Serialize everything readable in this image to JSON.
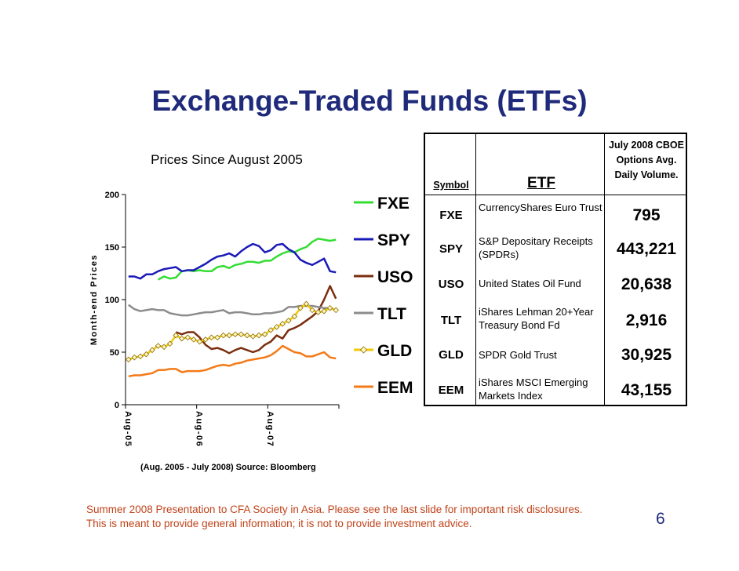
{
  "slide": {
    "title": "Exchange-Traded Funds (ETFs)",
    "footer_line1": "Summer 2008 Presentation to CFA Society in Asia.  Please see the last slide for important risk disclosures.",
    "footer_line2": "This is meant to provide general information; it is not to provide investment advice.",
    "page_number": "6"
  },
  "chart_data": {
    "type": "line",
    "title": "Prices Since August 2005",
    "xlabel": "",
    "ylabel": "Month-end Prices",
    "source": "(Aug. 2005 - July 2008) Source: Bloomberg",
    "ylim": [
      0,
      200
    ],
    "yticks": [
      0,
      50,
      100,
      150,
      200
    ],
    "n_points": 36,
    "xticks": [
      {
        "index": 0,
        "label": "Aug-05"
      },
      {
        "index": 12,
        "label": "Aug-06"
      },
      {
        "index": 24,
        "label": "Aug-07"
      }
    ],
    "series": [
      {
        "name": "FXE",
        "color": "#33dd33",
        "width": 2.5,
        "values": [
          null,
          null,
          null,
          null,
          null,
          119,
          122,
          120,
          121,
          127,
          128,
          127,
          128,
          127,
          127,
          131,
          132,
          130,
          133,
          134,
          136,
          136,
          135,
          137,
          137,
          141,
          144,
          146,
          145,
          148,
          150,
          155,
          158,
          157,
          156,
          157
        ]
      },
      {
        "name": "SPY",
        "color": "#1a1ab8",
        "width": 2.5,
        "values": [
          122,
          122,
          120,
          124,
          124,
          127,
          129,
          130,
          131,
          127,
          128,
          128,
          131,
          134,
          138,
          141,
          142,
          144,
          141,
          146,
          150,
          153,
          151,
          145,
          147,
          152,
          153,
          148,
          145,
          138,
          135,
          133,
          136,
          139,
          127,
          126
        ]
      },
      {
        "name": "USO",
        "color": "#7a2e0e",
        "width": 2.5,
        "values": [
          null,
          null,
          null,
          null,
          null,
          null,
          null,
          null,
          69,
          67,
          69,
          69,
          64,
          57,
          53,
          54,
          52,
          49,
          52,
          54,
          52,
          50,
          52,
          57,
          60,
          66,
          63,
          71,
          73,
          76,
          80,
          84,
          89,
          100,
          113,
          101
        ]
      },
      {
        "name": "TLT",
        "color": "#8c8c8c",
        "width": 2.5,
        "values": [
          95,
          91,
          89,
          90,
          91,
          90,
          90,
          87,
          86,
          85,
          85,
          86,
          87,
          88,
          88,
          89,
          90,
          87,
          88,
          88,
          87,
          86,
          86,
          87,
          87,
          88,
          89,
          93,
          93,
          94,
          94,
          94,
          93,
          92,
          92,
          90
        ]
      },
      {
        "name": "GLD",
        "color": "#f0c808",
        "width": 2.5,
        "marker": true,
        "values": [
          43,
          45,
          46,
          48,
          52,
          56,
          55,
          58,
          66,
          63,
          64,
          62,
          60,
          62,
          64,
          64,
          66,
          66,
          67,
          67,
          66,
          65,
          66,
          67,
          71,
          74,
          77,
          80,
          84,
          92,
          96,
          90,
          88,
          89,
          92,
          90
        ]
      },
      {
        "name": "EEM",
        "color": "#f47a18",
        "width": 2.5,
        "values": [
          27,
          28,
          28,
          29,
          30,
          33,
          33,
          34,
          34,
          31,
          32,
          32,
          32,
          33,
          35,
          37,
          38,
          37,
          39,
          40,
          42,
          43,
          44,
          45,
          47,
          51,
          56,
          53,
          50,
          49,
          46,
          46,
          48,
          50,
          45,
          44
        ]
      }
    ]
  },
  "table": {
    "header": {
      "symbol": "Symbol",
      "etf": "ETF",
      "volume": [
        "July 2008 CBOE",
        "Options Avg.",
        "Daily Volume."
      ]
    },
    "rows": [
      {
        "symbol": "FXE",
        "name": "CurrencyShares Euro Trust",
        "volume": "795"
      },
      {
        "symbol": "SPY",
        "name": "S&P Depositary Receipts (SPDRs)",
        "volume": "443,221"
      },
      {
        "symbol": "USO",
        "name": "United States Oil Fund",
        "volume": "20,638"
      },
      {
        "symbol": "TLT",
        "name": "iShares Lehman 20+Year Treasury Bond Fd",
        "volume": "2,916"
      },
      {
        "symbol": "GLD",
        "name": "SPDR Gold Trust",
        "volume": "30,925"
      },
      {
        "symbol": "EEM",
        "name": "iShares MSCI Emerging Markets Index",
        "volume": "43,155"
      }
    ]
  }
}
